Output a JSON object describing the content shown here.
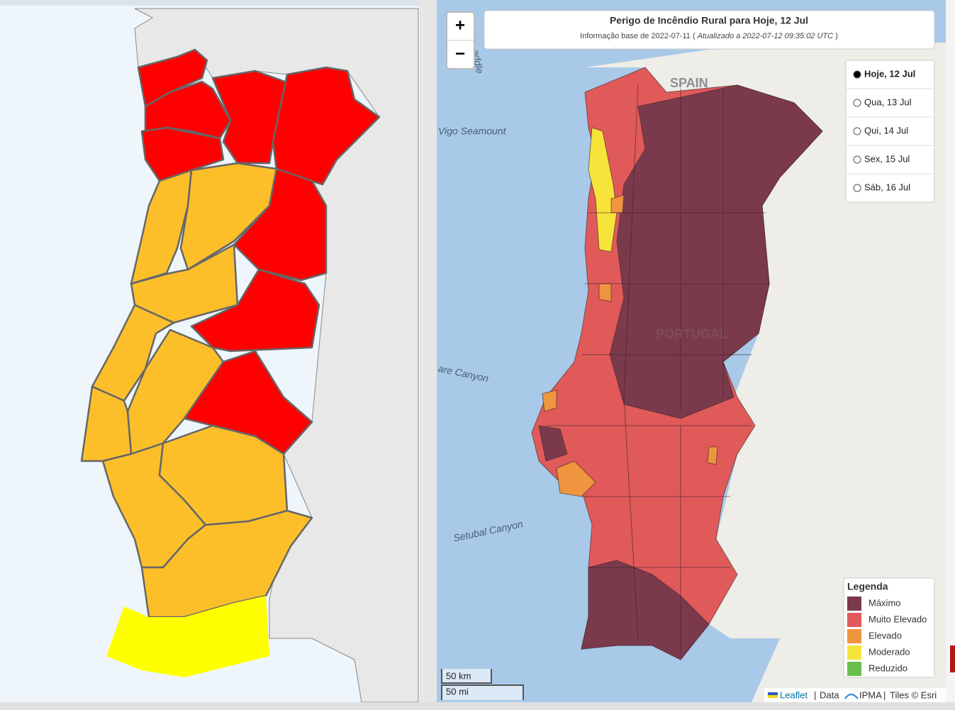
{
  "map": {
    "title": "Perigo de Incêndio Rural para Hoje, 12 Jul",
    "subtitle_base": "Informação base de 2022-07-11 (",
    "subtitle_updated": "Atualizado a 2022-07-12 09:35:02 UTC",
    "subtitle_end": ")",
    "zoom_in": "+",
    "zoom_out": "−",
    "days": [
      "Hoje, 12 Jul",
      "Qua, 13 Jul",
      "Qui, 14 Jul",
      "Sex, 15 Jul",
      "Sáb, 16 Jul"
    ],
    "selected_day": 0,
    "legend": {
      "title": "Legenda",
      "items": [
        {
          "name": "Máximo",
          "color": "#7b3a4c"
        },
        {
          "name": "Muito Elevado",
          "color": "#e05a5a"
        },
        {
          "name": "Elevado",
          "color": "#f0953f"
        },
        {
          "name": "Moderado",
          "color": "#f7e43a"
        },
        {
          "name": "Reduzido",
          "color": "#6bbf4e"
        }
      ]
    },
    "scale": [
      "50 km",
      "50 mi"
    ],
    "labels": [
      "SPAIN",
      "PORTUGAL",
      "Vigo Seamount",
      "are Canyon",
      "Setubal Canyon",
      "addle"
    ],
    "attribution": {
      "leaflet": "Leaflet",
      "sep": "|",
      "data": "Data",
      "ipma": "IPMA",
      "tiles": "Tiles © Esri"
    }
  }
}
